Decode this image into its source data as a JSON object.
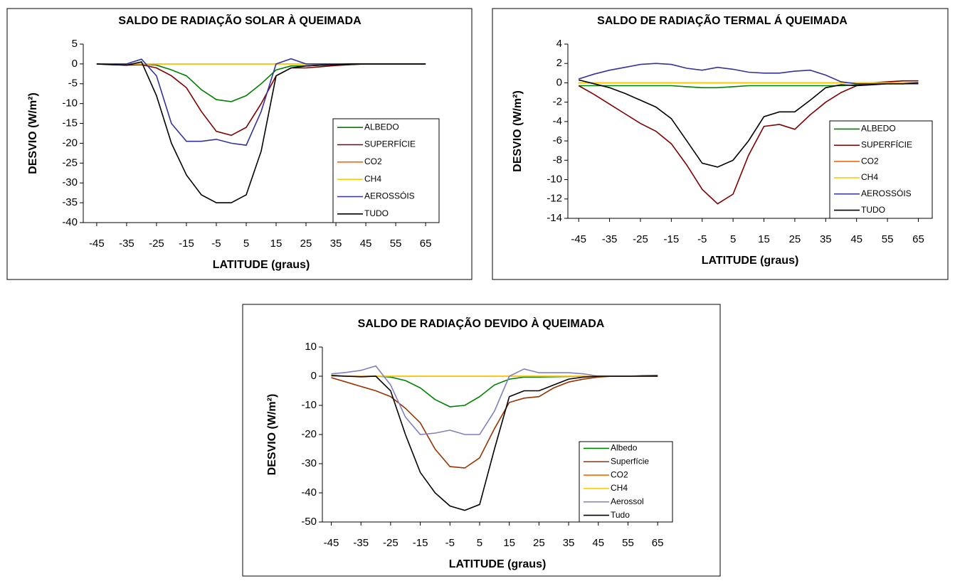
{
  "chart_data": [
    {
      "type": "line",
      "title": "SALDO DE RADIAÇÃO SOLAR À QUEIMADA",
      "x_label": "LATITUDE (graus)",
      "y_label": "DESVIO (W/m²)",
      "xlim": [
        -49.5,
        69.5
      ],
      "xticks": [
        -45,
        -35,
        -25,
        -15,
        -5,
        5,
        15,
        25,
        35,
        45,
        55,
        65
      ],
      "ylim": [
        -40,
        5
      ],
      "yticks": [
        -40,
        -35,
        -30,
        -25,
        -20,
        -15,
        -10,
        -5,
        0,
        5
      ],
      "legend": "lower right",
      "x": [
        -45,
        -40,
        -35,
        -30,
        -25,
        -20,
        -15,
        -10,
        -5,
        0,
        5,
        10,
        15,
        20,
        25,
        30,
        35,
        40,
        45,
        50,
        55,
        60,
        65
      ],
      "series": [
        {
          "name": "ALBEDO",
          "color": "#008000",
          "values": [
            0,
            0,
            0,
            0,
            -0.3,
            -1.5,
            -3,
            -6.5,
            -9,
            -9.5,
            -8,
            -5,
            -1.5,
            -0.5,
            -0.5,
            -0.3,
            -0.2,
            0,
            0,
            0,
            0,
            0,
            0
          ]
        },
        {
          "name": "SUPERFÍCIE",
          "color": "#800000",
          "values": [
            0,
            -0.2,
            -0.3,
            -0.2,
            -1,
            -3,
            -6,
            -12,
            -17,
            -18,
            -16,
            -10,
            -3,
            -1,
            -1,
            -0.7,
            -0.4,
            -0.2,
            0,
            0,
            0,
            0,
            0
          ]
        },
        {
          "name": "CO2",
          "color": "#ff6600",
          "values": [
            0,
            0,
            0,
            0,
            0,
            0,
            0,
            0,
            0,
            0,
            0,
            0,
            0,
            0,
            0,
            0,
            0,
            0,
            0,
            0,
            0,
            0,
            0
          ]
        },
        {
          "name": "CH4",
          "color": "#ffcc00",
          "values": [
            0,
            0,
            0,
            0,
            0,
            0,
            0,
            0,
            0,
            0,
            0,
            0,
            0,
            0,
            0,
            0,
            0,
            0,
            0,
            0,
            0,
            0,
            0
          ]
        },
        {
          "name": "AEROSSÓIS",
          "color": "#333399",
          "values": [
            0,
            0,
            0,
            1.2,
            -3,
            -15,
            -19.5,
            -19.5,
            -19,
            -20,
            -20.5,
            -12,
            0,
            1.3,
            0,
            0,
            0,
            0,
            0,
            0,
            0,
            0,
            0
          ]
        },
        {
          "name": "TUDO",
          "color": "#000000",
          "values": [
            0,
            -0.2,
            -0.3,
            0.5,
            -8,
            -20,
            -28,
            -33,
            -35,
            -35,
            -33,
            -22,
            -3,
            -1,
            -0.5,
            -0.3,
            -0.2,
            0,
            0,
            0,
            0,
            0,
            0
          ]
        }
      ]
    },
    {
      "type": "line",
      "title": "SALDO DE RADIAÇÃO TERMAL Á QUEIMADA",
      "x_label": "LATITUDE (graus)",
      "y_label": "DESVIO (W/m²)",
      "xlim": [
        -48.5,
        69.5
      ],
      "xticks": [
        -45,
        -35,
        -25,
        -15,
        -5,
        5,
        15,
        25,
        35,
        45,
        55,
        65
      ],
      "ylim": [
        -14,
        4
      ],
      "yticks": [
        -14,
        -12,
        -10,
        -8,
        -6,
        -4,
        -2,
        0,
        2,
        4
      ],
      "legend": "lower right",
      "x": [
        -45,
        -40,
        -35,
        -30,
        -25,
        -20,
        -15,
        -10,
        -5,
        0,
        5,
        10,
        15,
        20,
        25,
        30,
        35,
        40,
        45,
        50,
        55,
        60,
        65
      ],
      "series": [
        {
          "name": "ALBEDO",
          "color": "#008000",
          "values": [
            -0.3,
            -0.3,
            -0.3,
            -0.3,
            -0.3,
            -0.3,
            -0.3,
            -0.4,
            -0.5,
            -0.5,
            -0.4,
            -0.3,
            -0.3,
            -0.3,
            -0.3,
            -0.3,
            -0.3,
            -0.3,
            -0.2,
            -0.1,
            0,
            0,
            0
          ]
        },
        {
          "name": "SUPERFÍCIE",
          "color": "#800000",
          "values": [
            -0.3,
            -1.2,
            -2.2,
            -3.2,
            -4.2,
            -5,
            -6.3,
            -8.5,
            -11,
            -12.5,
            -11.5,
            -7.5,
            -4.5,
            -4.3,
            -4.8,
            -3.3,
            -2,
            -1,
            -0.3,
            0,
            0.1,
            0.2,
            0.2
          ]
        },
        {
          "name": "CO2",
          "color": "#ff6600",
          "values": [
            0,
            0,
            0,
            0,
            0,
            0,
            0,
            0,
            0,
            0,
            0,
            0,
            0,
            0,
            0,
            0,
            0,
            0,
            0,
            0,
            0,
            0,
            0
          ]
        },
        {
          "name": "CH4",
          "color": "#ffcc00",
          "values": [
            0,
            0,
            0,
            0,
            0,
            0,
            0,
            0,
            0,
            0,
            0,
            0,
            0,
            0,
            0,
            0,
            0,
            0,
            0,
            0,
            0,
            0,
            0
          ]
        },
        {
          "name": "AEROSSÓIS",
          "color": "#333399",
          "values": [
            0.4,
            0.9,
            1.3,
            1.6,
            1.9,
            2,
            1.9,
            1.5,
            1.3,
            1.6,
            1.4,
            1.1,
            1,
            1,
            1.2,
            1.3,
            0.8,
            0.1,
            -0.1,
            -0.1,
            -0.1,
            -0.1,
            -0.1
          ]
        },
        {
          "name": "TUDO",
          "color": "#000000",
          "values": [
            0.3,
            -0.1,
            -0.5,
            -1.1,
            -1.8,
            -2.5,
            -3.7,
            -6,
            -8.3,
            -8.7,
            -8,
            -6,
            -3.5,
            -3,
            -3,
            -1.8,
            -0.5,
            -0.2,
            -0.3,
            -0.2,
            -0.1,
            -0.1,
            0
          ]
        }
      ]
    },
    {
      "type": "line",
      "title": "SALDO DE RADIAÇÃO DEVIDO À QUEIMADA",
      "x_label": "LATITUDE (graus)",
      "y_label": "DESVIO (W/m²)",
      "xlim": [
        -48,
        70
      ],
      "xticks": [
        -45,
        -35,
        -25,
        -15,
        -5,
        5,
        15,
        25,
        35,
        45,
        55,
        65
      ],
      "ylim": [
        -50,
        10
      ],
      "yticks": [
        -50,
        -40,
        -30,
        -20,
        -10,
        0,
        10
      ],
      "legend": "lower right",
      "x": [
        -45,
        -40,
        -35,
        -30,
        -25,
        -20,
        -15,
        -10,
        -5,
        0,
        5,
        10,
        15,
        20,
        25,
        30,
        35,
        40,
        45,
        50,
        55,
        60,
        65
      ],
      "series": [
        {
          "name": "Albedo",
          "color": "#008000",
          "values": [
            0,
            0,
            0,
            0,
            -0.3,
            -1.5,
            -4,
            -8,
            -10.5,
            -10,
            -7,
            -3,
            -1,
            -0.3,
            -0.3,
            -0.2,
            -0.1,
            0,
            0,
            0,
            0,
            0,
            0
          ]
        },
        {
          "name": "Superfície",
          "color": "#993300",
          "values": [
            -0.5,
            -2,
            -3.5,
            -5,
            -7,
            -11,
            -16,
            -25,
            -31,
            -31.5,
            -28,
            -18,
            -9,
            -7.5,
            -7,
            -4,
            -2,
            -1,
            -0.3,
            0,
            0,
            0.2,
            0.3
          ]
        },
        {
          "name": "CO2",
          "color": "#ff6600",
          "values": [
            0,
            0,
            0,
            0,
            0,
            0,
            0,
            0,
            0,
            0,
            0,
            0,
            0,
            0,
            0,
            0,
            0,
            0,
            0,
            0,
            0,
            0,
            0
          ]
        },
        {
          "name": "CH4",
          "color": "#ffcc00",
          "values": [
            0,
            0,
            0,
            0,
            0,
            0,
            0,
            0,
            0,
            0,
            0,
            0,
            0,
            0,
            0,
            0,
            0,
            0,
            0,
            0,
            0,
            0,
            0
          ]
        },
        {
          "name": "Aerossol",
          "color": "#8080c0",
          "values": [
            0.8,
            1.3,
            2,
            3.5,
            -3,
            -14,
            -20,
            -19.5,
            -18.5,
            -20,
            -20,
            -12,
            0,
            2.5,
            1.2,
            1.2,
            1.2,
            0.8,
            0,
            0,
            0,
            0,
            0
          ]
        },
        {
          "name": "Tudo",
          "color": "#000000",
          "values": [
            0.3,
            0,
            -0.2,
            0,
            -5,
            -20,
            -33,
            -40,
            -44.5,
            -46,
            -44,
            -25,
            -7,
            -5,
            -5,
            -3,
            -1,
            -0.3,
            0,
            0,
            0,
            0,
            0
          ]
        }
      ]
    }
  ]
}
